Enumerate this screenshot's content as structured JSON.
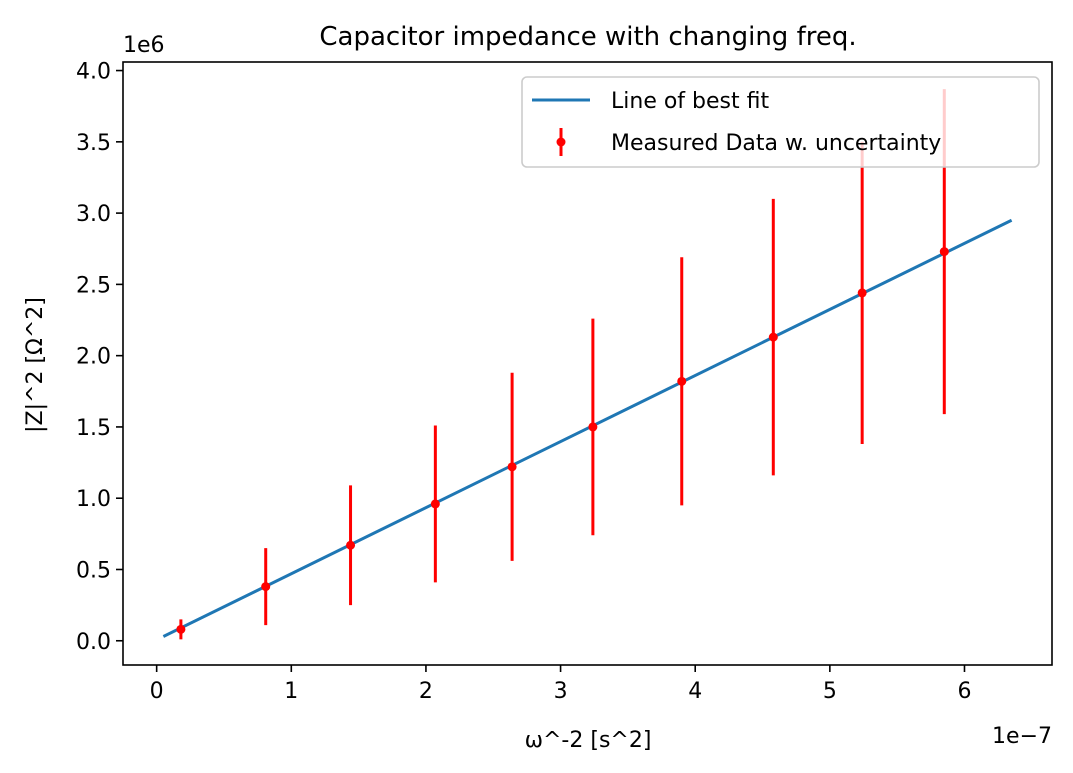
{
  "chart_data": {
    "type": "scatter",
    "title": "Capacitor impedance with changing freq.",
    "xlabel": "ω^-2  [s^2]",
    "ylabel": "|Z|^2 [Ω^2]",
    "x_offset_text": "1e−7",
    "y_offset_text": "1e6",
    "x_scale_factor": 1e-07,
    "y_scale_factor": 1000000.0,
    "xlim": [
      -2.5e-08,
      6.65e-07
    ],
    "ylim": [
      -170000.0,
      4060000.0
    ],
    "x_ticks": [
      0,
      1e-07,
      2e-07,
      3e-07,
      4e-07,
      5e-07,
      6e-07
    ],
    "x_tick_labels": [
      "0",
      "1",
      "2",
      "3",
      "4",
      "5",
      "6"
    ],
    "y_ticks": [
      0,
      500000.0,
      1000000.0,
      1500000.0,
      2000000.0,
      2500000.0,
      3000000.0,
      3500000.0,
      4000000.0
    ],
    "y_tick_labels": [
      "0.0",
      "0.5",
      "1.0",
      "1.5",
      "2.0",
      "2.5",
      "3.0",
      "3.5",
      "4.0"
    ],
    "grid": false,
    "legend_position": "top-right",
    "series": [
      {
        "name": "Line of best fit",
        "kind": "line",
        "color": "#1f77b4",
        "x": [
          5e-09,
          6.35e-07
        ],
        "y": [
          30000.0,
          2950000.0
        ]
      },
      {
        "name": "Measured Data w. uncertainty",
        "kind": "errorbar",
        "color": "#ff0000",
        "x": [
          1.8e-08,
          8.1e-08,
          1.44e-07,
          2.07e-07,
          2.64e-07,
          3.24e-07,
          3.9e-07,
          4.58e-07,
          5.24e-07,
          5.85e-07
        ],
        "y": [
          80000.0,
          380000.0,
          670000.0,
          960000.0,
          1220000.0,
          1500000.0,
          1820000.0,
          2130000.0,
          2440000.0,
          2730000.0
        ],
        "yerr": [
          70000.0,
          270000.0,
          420000.0,
          550000.0,
          660000.0,
          760000.0,
          870000.0,
          970000.0,
          1060000.0,
          1140000.0
        ]
      }
    ]
  }
}
